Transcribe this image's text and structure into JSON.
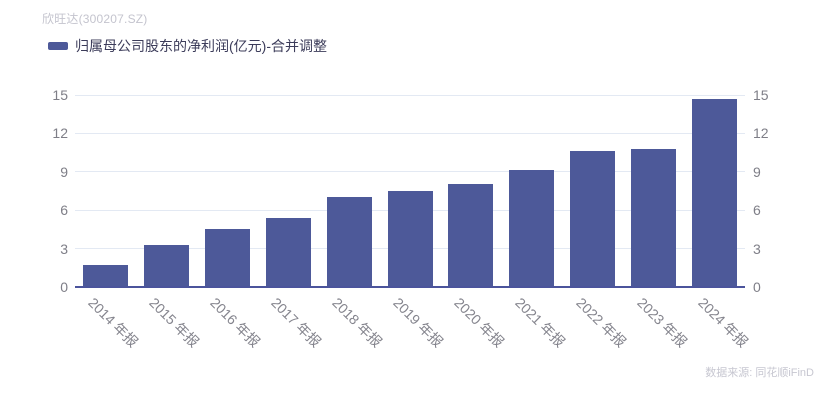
{
  "header": {
    "title": "欣旺达(300207.SZ)"
  },
  "legend": {
    "label": "归属母公司股东的净利润(亿元)-合并调整",
    "marker_color": "#4d5999"
  },
  "footer": {
    "source": "数据来源: 同花顺iFinD"
  },
  "colors": {
    "bar": "#4d5999",
    "axis_line": "#4b549c",
    "gridline": "#e3e9f3",
    "tick_label": "#7e7e87",
    "title": "#c4c4ce",
    "legend_text": "#3c3c5a",
    "source_text": "#c7c7d1"
  },
  "chart_data": {
    "type": "bar",
    "title": "归属母公司股东的净利润(亿元)-合并调整",
    "categories": [
      "2014 年报",
      "2015 年报",
      "2016 年报",
      "2017 年报",
      "2018 年报",
      "2019 年报",
      "2020 年报",
      "2021 年报",
      "2022 年报",
      "2023 年报",
      "2024 年报"
    ],
    "values": [
      1.7,
      3.29,
      4.51,
      5.39,
      7.01,
      7.51,
      8.02,
      9.16,
      10.64,
      10.76,
      14.68
    ],
    "xlabel": "",
    "ylabel": "",
    "ylim": [
      0,
      15
    ],
    "yticks": [
      0,
      3,
      6,
      9,
      12,
      15
    ],
    "grid": true,
    "y_axis_sides": [
      "left",
      "right"
    ],
    "legend_position": "top-left",
    "x_label_rotation_deg": 45
  }
}
